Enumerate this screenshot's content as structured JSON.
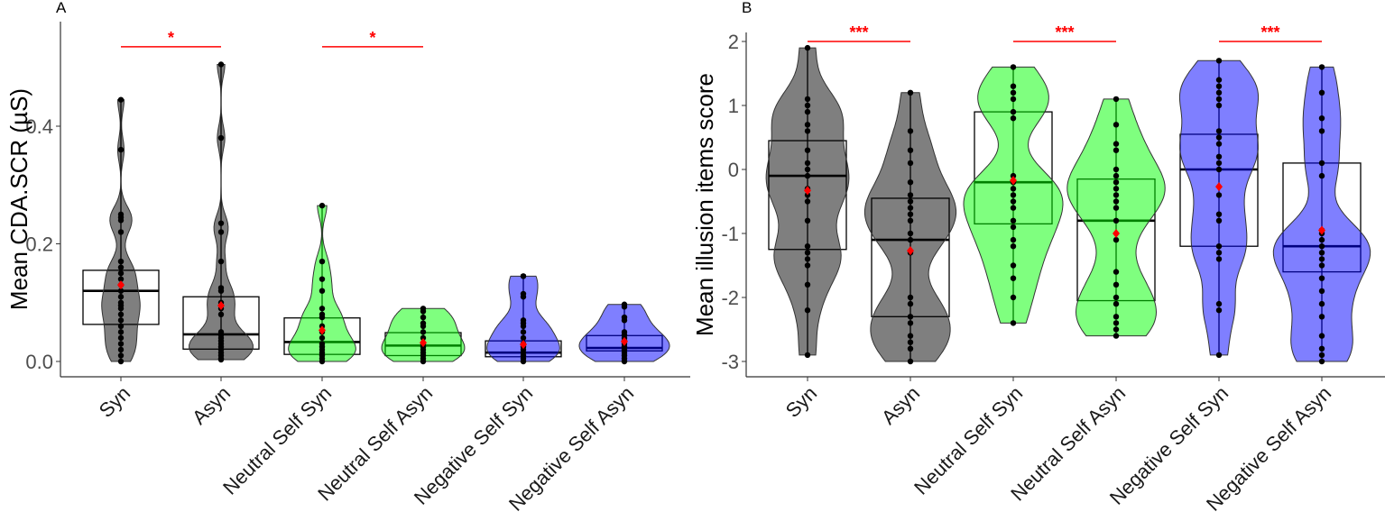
{
  "chart_data": [
    {
      "type": "violin",
      "panel_label": "A",
      "ylabel": "Mean CDA.SCR (µS)",
      "ylim": [
        -0.005,
        0.6
      ],
      "yticks": [
        0.0,
        0.2,
        0.4
      ],
      "ytick_labels": [
        "0.0",
        "0.2",
        "0.4"
      ],
      "categories": [
        "Syn",
        "Asyn",
        "Neutral Self Syn",
        "Neutral Self Asyn",
        "Negative Self Syn",
        "Negative Self Asyn"
      ],
      "colors": [
        "#000000",
        "#000000",
        "#00ff00",
        "#00ff00",
        "#0000ff",
        "#0000ff"
      ],
      "mean_color": "#ff0000",
      "groups": [
        {
          "q1": 0.063,
          "median": 0.12,
          "q3": 0.155,
          "mean": 0.13,
          "points": [
            0.445,
            0.36,
            0.25,
            0.245,
            0.24,
            0.22,
            0.17,
            0.16,
            0.15,
            0.14,
            0.13,
            0.12,
            0.11,
            0.1,
            0.095,
            0.09,
            0.08,
            0.07,
            0.06,
            0.05,
            0.04,
            0.03,
            0.02,
            0.01,
            0.0
          ]
        },
        {
          "q1": 0.021,
          "median": 0.046,
          "q3": 0.11,
          "mean": 0.095,
          "points": [
            0.505,
            0.38,
            0.235,
            0.22,
            0.17,
            0.125,
            0.12,
            0.1,
            0.09,
            0.08,
            0.05,
            0.045,
            0.04,
            0.035,
            0.03,
            0.025,
            0.02,
            0.015,
            0.01,
            0.005,
            0.003
          ]
        },
        {
          "q1": 0.012,
          "median": 0.033,
          "q3": 0.074,
          "mean": 0.053,
          "points": [
            0.265,
            0.17,
            0.14,
            0.12,
            0.09,
            0.08,
            0.075,
            0.06,
            0.05,
            0.04,
            0.03,
            0.025,
            0.02,
            0.015,
            0.01,
            0.005,
            0.0
          ]
        },
        {
          "q1": 0.01,
          "median": 0.027,
          "q3": 0.049,
          "mean": 0.032,
          "points": [
            0.09,
            0.085,
            0.075,
            0.065,
            0.06,
            0.05,
            0.04,
            0.03,
            0.025,
            0.02,
            0.015,
            0.01,
            0.005,
            0.0
          ]
        },
        {
          "q1": 0.008,
          "median": 0.015,
          "q3": 0.035,
          "mean": 0.029,
          "points": [
            0.145,
            0.145,
            0.115,
            0.11,
            0.07,
            0.065,
            0.06,
            0.05,
            0.04,
            0.03,
            0.025,
            0.02,
            0.015,
            0.01,
            0.005,
            0.0
          ]
        },
        {
          "q1": 0.018,
          "median": 0.023,
          "q3": 0.044,
          "mean": 0.034,
          "points": [
            0.097,
            0.093,
            0.075,
            0.07,
            0.05,
            0.045,
            0.04,
            0.035,
            0.03,
            0.025,
            0.02,
            0.015,
            0.01,
            0.005,
            0.0
          ]
        }
      ],
      "significance": [
        {
          "from": 0,
          "to": 1,
          "y": 0.535,
          "label": "*"
        },
        {
          "from": 2,
          "to": 3,
          "y": 0.535,
          "label": "*"
        }
      ],
      "bandwidth": 0.02
    },
    {
      "type": "violin",
      "panel_label": "B",
      "ylabel": "Mean illusion items score",
      "ylim": [
        -3.05,
        2.25
      ],
      "yticks": [
        -3,
        -2,
        -1,
        0,
        1,
        2
      ],
      "ytick_labels": [
        "-3",
        "-2",
        "-1",
        "0",
        "1",
        "2"
      ],
      "categories": [
        "Syn",
        "Asyn",
        "Neutral Self Syn",
        "Neutral Self Asyn",
        "Negative Self Syn",
        "Negative Self Asyn"
      ],
      "colors": [
        "#000000",
        "#000000",
        "#00ff00",
        "#00ff00",
        "#0000ff",
        "#0000ff"
      ],
      "mean_color": "#ff0000",
      "groups": [
        {
          "q1": -1.25,
          "median": -0.1,
          "q3": 0.45,
          "mean": -0.33,
          "points": [
            1.9,
            1.1,
            1.0,
            0.9,
            0.7,
            0.6,
            0.3,
            0.1,
            0,
            -0.1,
            -0.3,
            -0.4,
            -0.5,
            -0.8,
            -1.2,
            -1.3,
            -1.4,
            -1.5,
            -1.8,
            -2.2,
            -2.9
          ]
        },
        {
          "q1": -2.3,
          "median": -1.1,
          "q3": -0.45,
          "mean": -1.27,
          "points": [
            1.2,
            0.6,
            0.3,
            0.1,
            -0.2,
            -0.4,
            -0.5,
            -0.6,
            -0.7,
            -0.8,
            -1.0,
            -1.1,
            -1.3,
            -2.0,
            -2.1,
            -2.3,
            -2.4,
            -2.6,
            -2.7,
            -2.8,
            -3.0
          ]
        },
        {
          "q1": -0.85,
          "median": -0.2,
          "q3": 0.9,
          "mean": -0.17,
          "points": [
            1.6,
            1.3,
            1.2,
            1.1,
            0.9,
            0.8,
            -0.1,
            -0.2,
            -0.3,
            -0.4,
            -0.5,
            -0.6,
            -0.8,
            -0.9,
            -1.1,
            -1.2,
            -1.5,
            -1.7,
            -2.0,
            -2.4
          ]
        },
        {
          "q1": -2.05,
          "median": -0.8,
          "q3": -0.15,
          "mean": -1.0,
          "points": [
            1.1,
            0.7,
            0.4,
            0.3,
            0,
            -0.1,
            -0.2,
            -0.3,
            -0.4,
            -0.5,
            -0.6,
            -0.8,
            -1.1,
            -1.6,
            -1.8,
            -2.0,
            -2.1,
            -2.3,
            -2.4,
            -2.5,
            -2.6
          ]
        },
        {
          "q1": -1.2,
          "median": 0.0,
          "q3": 0.55,
          "mean": -0.27,
          "points": [
            1.7,
            1.4,
            1.3,
            1.2,
            1.1,
            1.0,
            0.6,
            0.5,
            0.4,
            0.2,
            0.1,
            0,
            -0.4,
            -0.7,
            -0.8,
            -1.2,
            -1.3,
            -1.4,
            -2.1,
            -2.2,
            -2.9
          ]
        },
        {
          "q1": -1.6,
          "median": -1.2,
          "q3": 0.1,
          "mean": -0.95,
          "points": [
            1.6,
            1.2,
            0.8,
            0.6,
            0.1,
            -0.1,
            -0.95,
            -1.0,
            -1.1,
            -1.2,
            -1.3,
            -1.4,
            -1.5,
            -1.7,
            -1.9,
            -2.1,
            -2.3,
            -2.6,
            -2.8,
            -2.9,
            -3.0
          ]
        }
      ],
      "significance": [
        {
          "from": 0,
          "to": 1,
          "y": 2.0,
          "label": "***"
        },
        {
          "from": 2,
          "to": 3,
          "y": 2.0,
          "label": "***"
        },
        {
          "from": 4,
          "to": 5,
          "y": 2.0,
          "label": "***"
        }
      ],
      "bandwidth": 0.35
    }
  ]
}
